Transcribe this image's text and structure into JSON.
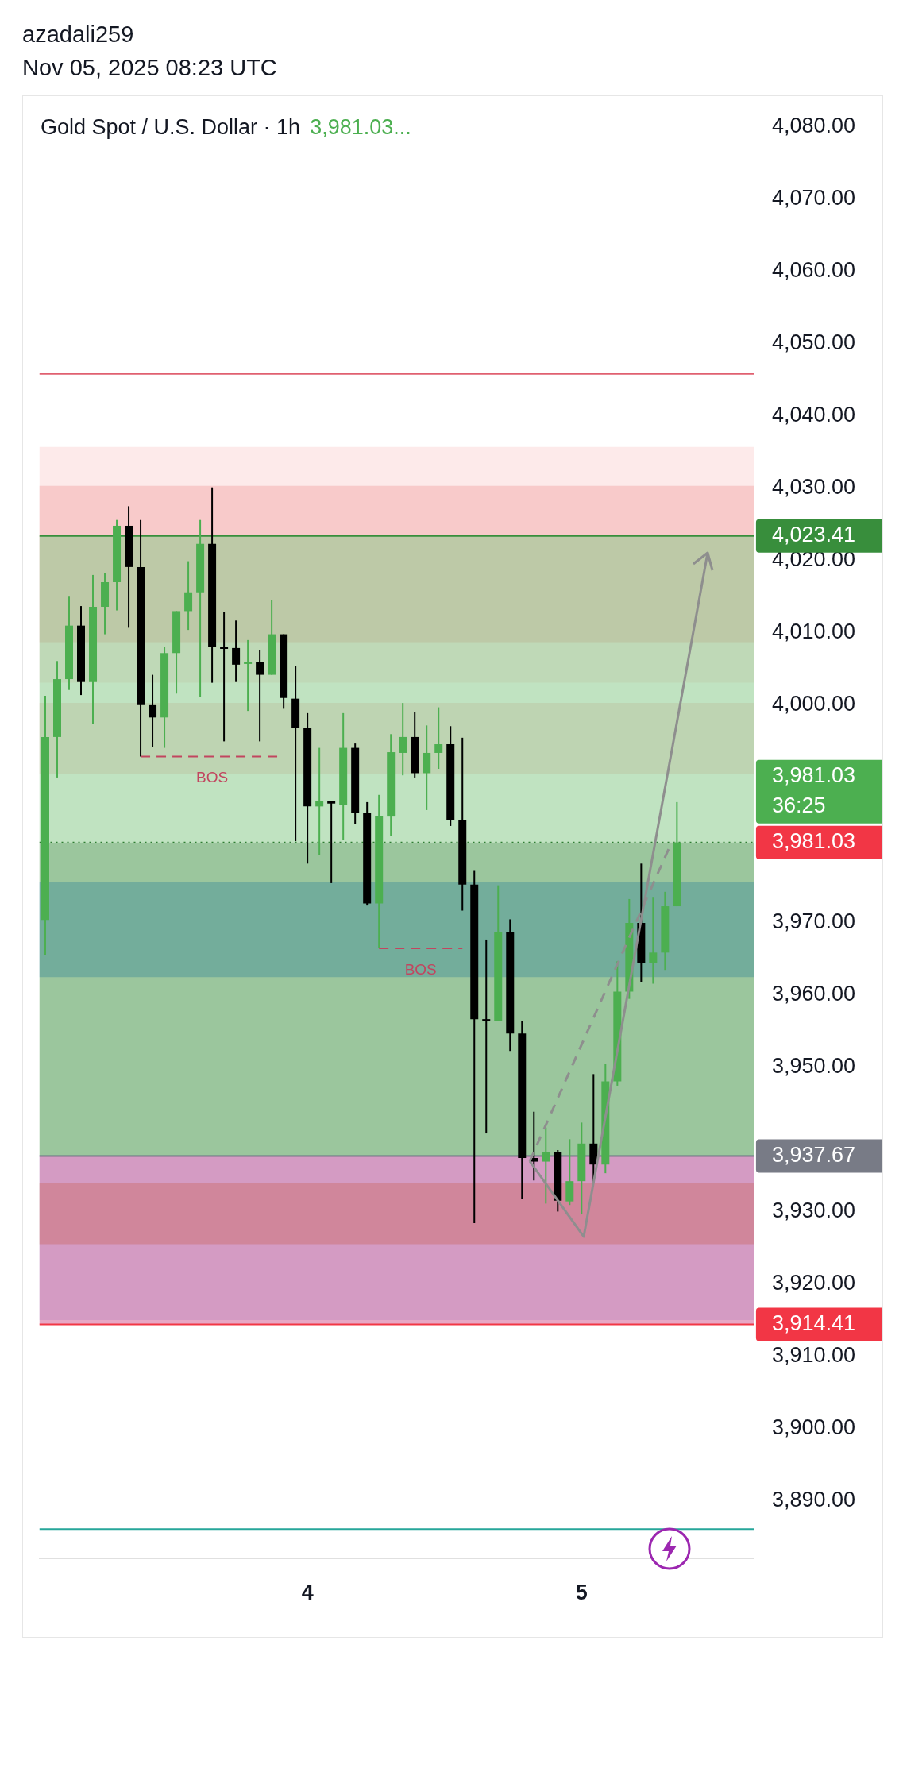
{
  "chart_data": {
    "type": "candlestick",
    "title": "Gold Spot / U.S. Dollar · 1h",
    "subtitle": "3,981.03...",
    "categories": [
      null,
      null,
      null,
      null,
      null,
      null,
      null,
      null,
      null,
      null,
      null,
      null,
      null,
      null,
      null,
      null,
      null,
      null,
      null,
      null,
      null,
      null,
      "4",
      null,
      null,
      null,
      null,
      null,
      null,
      null,
      null,
      null,
      null,
      null,
      null,
      null,
      null,
      null,
      null,
      null,
      null,
      null,
      null,
      null,
      null,
      "5",
      null,
      null,
      null,
      null,
      null,
      null,
      null,
      null,
      null,
      null,
      null,
      null,
      null,
      null
    ],
    "ohlc": [
      [
        3970.3,
        4001.3,
        3965.4,
        3995.6
      ],
      [
        3995.6,
        4006.1,
        3990.0,
        4003.6
      ],
      [
        4003.6,
        4015.0,
        4002.1,
        4011.0
      ],
      [
        4011.0,
        4013.7,
        4001.4,
        4003.2
      ],
      [
        4003.2,
        4018.0,
        3997.4,
        4013.6
      ],
      [
        4013.6,
        4018.3,
        4009.8,
        4017.0
      ],
      [
        4017.0,
        4025.6,
        4013.1,
        4024.8
      ],
      [
        4024.8,
        4027.5,
        4010.7,
        4019.1
      ],
      [
        4019.1,
        4025.6,
        3992.9,
        4000.0
      ],
      [
        4000.0,
        4004.2,
        3994.2,
        3998.3
      ],
      [
        3998.3,
        4008.1,
        3994.1,
        4007.2
      ],
      [
        4007.2,
        4013.0,
        4001.6,
        4013.0
      ],
      [
        4013.0,
        4019.9,
        4010.4,
        4015.6
      ],
      [
        4015.6,
        4025.6,
        4001.1,
        4022.3
      ],
      [
        4022.3,
        4030.1,
        4003.1,
        4008.0
      ],
      [
        4008.0,
        4012.9,
        3995.0,
        4007.8
      ],
      [
        4007.9,
        4011.7,
        4003.2,
        4005.6
      ],
      [
        4005.7,
        4009.0,
        3999.2,
        4006.0
      ],
      [
        4006.0,
        4007.6,
        3995.0,
        4004.2
      ],
      [
        4004.2,
        4014.5,
        4004.2,
        4009.8
      ],
      [
        4009.8,
        4009.8,
        3999.5,
        4001.0
      ],
      [
        4000.9,
        4005.4,
        3981.2,
        3996.8
      ],
      [
        3996.8,
        3998.9,
        3978.1,
        3986.0
      ],
      [
        3986.0,
        3994.1,
        3979.3,
        3986.8
      ],
      [
        3986.7,
        3986.7,
        3975.4,
        3986.4
      ],
      [
        3986.2,
        3998.9,
        3981.4,
        3994.1
      ],
      [
        3994.1,
        3994.7,
        3983.6,
        3985.1
      ],
      [
        3985.1,
        3986.6,
        3972.3,
        3972.6
      ],
      [
        3972.6,
        3987.6,
        3966.4,
        3984.6
      ],
      [
        3984.6,
        3996.0,
        3981.9,
        3993.5
      ],
      [
        3993.4,
        4000.3,
        3990.3,
        3995.6
      ],
      [
        3995.6,
        3999.0,
        3990.0,
        3990.6
      ],
      [
        3990.6,
        3997.2,
        3985.5,
        3993.4
      ],
      [
        3993.4,
        3999.7,
        3991.2,
        3994.6
      ],
      [
        3994.6,
        3997.1,
        3983.3,
        3984.1
      ],
      [
        3984.1,
        3995.5,
        3971.6,
        3975.2
      ],
      [
        3975.2,
        3977.1,
        3928.4,
        3956.6
      ],
      [
        3956.6,
        3967.6,
        3940.8,
        3956.3
      ],
      [
        3956.3,
        3975.1,
        3956.3,
        3968.6
      ],
      [
        3968.6,
        3970.4,
        3952.2,
        3954.6
      ],
      [
        3954.6,
        3956.3,
        3931.7,
        3937.4
      ],
      [
        3937.4,
        3943.8,
        3934.3,
        3936.9
      ],
      [
        3936.9,
        3941.6,
        3931.1,
        3938.2
      ],
      [
        3938.2,
        3938.5,
        3930.0,
        3931.5
      ],
      [
        3931.4,
        3940.0,
        3930.9,
        3934.2
      ],
      [
        3934.2,
        3942.3,
        3929.6,
        3939.4
      ],
      [
        3939.4,
        3949.0,
        3934.1,
        3936.5
      ],
      [
        3936.5,
        3950.4,
        3935.3,
        3948.0
      ],
      [
        3948.0,
        3964.6,
        3947.4,
        3960.4
      ],
      [
        3960.4,
        3973.2,
        3959.4,
        3969.9
      ],
      [
        3969.9,
        3978.1,
        3961.7,
        3964.3
      ],
      [
        3964.3,
        3973.5,
        3961.5,
        3965.8
      ],
      [
        3965.8,
        3974.2,
        3963.4,
        3972.2
      ],
      [
        3972.2,
        3986.6,
        3972.2,
        3981.03
      ],
      null,
      null,
      null,
      null,
      null,
      null
    ],
    "colors": [
      "#4caf50",
      "#4caf50",
      "#4caf50",
      "#000000",
      "#4caf50",
      "#4caf50",
      "#4caf50",
      "#000000",
      "#000000",
      "#000000",
      "#4caf50",
      "#4caf50",
      "#4caf50",
      "#4caf50",
      "#000000",
      "#000000",
      "#000000",
      "#4caf50",
      "#000000",
      "#4caf50",
      "#000000",
      "#000000",
      "#000000",
      "#4caf50",
      "#000000",
      "#4caf50",
      "#000000",
      "#000000",
      "#4caf50",
      "#4caf50",
      "#4caf50",
      "#000000",
      "#4caf50",
      "#4caf50",
      "#000000",
      "#000000",
      "#000000",
      "#000000",
      "#4caf50",
      "#000000",
      "#000000",
      "#000000",
      "#4caf50",
      "#000000",
      "#4caf50",
      "#4caf50",
      "#000000",
      "#4caf50",
      "#4caf50",
      "#4caf50",
      "#000000",
      "#4caf50",
      "#4caf50",
      "#4caf50",
      null,
      null,
      null,
      null,
      null,
      null
    ],
    "ylim": [
      3882,
      4080
    ],
    "yticks": [
      {
        "value": 3890,
        "label": "3,890.00"
      },
      {
        "value": 3900,
        "label": "3,900.00"
      },
      {
        "value": 3910,
        "label": "3,910.00"
      },
      {
        "value": 3920,
        "label": "3,920.00"
      },
      {
        "value": 3930,
        "label": "3,930.00"
      },
      {
        "value": 3950,
        "label": "3,950.00"
      },
      {
        "value": 3960,
        "label": "3,960.00"
      },
      {
        "value": 3970,
        "label": "3,970.00"
      },
      {
        "value": 4000,
        "label": "4,000.00"
      },
      {
        "value": 4010,
        "label": "4,010.00"
      },
      {
        "value": 4020,
        "label": "4,020.00"
      },
      {
        "value": 4030,
        "label": "4,030.00"
      },
      {
        "value": 4040,
        "label": "4,040.00"
      },
      {
        "value": 4050,
        "label": "4,050.00"
      },
      {
        "value": 4060,
        "label": "4,060.00"
      },
      {
        "value": 4070,
        "label": "4,070.00"
      },
      {
        "value": 4080,
        "label": "4,080.00"
      }
    ],
    "bands": [
      {
        "axis": "y",
        "from": 4003.1,
        "to": 4035.7,
        "color": "#fbd5d5"
      },
      {
        "axis": "y",
        "from": 4008.7,
        "to": 4030.3,
        "color": "#f3a9a9"
      },
      {
        "axis": "y",
        "from": 3990.5,
        "to": 4000.3,
        "color": "#f7c4c4"
      },
      {
        "axis": "y",
        "from": 3962.4,
        "to": 3975.6,
        "color": "#5d9cf5"
      },
      {
        "axis": "y",
        "from": 3915.0,
        "to": 3937.8,
        "color": "#b3cdf8"
      },
      {
        "axis": "y",
        "from": 3925.5,
        "to": 3933.9,
        "color": "#c8925a"
      },
      {
        "axis": "y",
        "from": 3981.03,
        "to": 4023.41,
        "color": "#81c784"
      },
      {
        "axis": "y",
        "from": 3937.67,
        "to": 3981.03,
        "color": "#388e3c"
      },
      {
        "axis": "y",
        "from": 3914.41,
        "to": 3937.67,
        "color": "#d0508c"
      }
    ],
    "ref_lines": [
      {
        "axis": "y",
        "value": 4045.8,
        "color": "#e06070",
        "line_style": "solid"
      },
      {
        "axis": "y",
        "value": 3886.1,
        "color": "#26a69a",
        "line_style": "solid"
      },
      {
        "axis": "y",
        "value": 4023.41,
        "label": "4,023.41",
        "color": "#388e3c",
        "line_style": "solid"
      },
      {
        "axis": "y",
        "value": 3981.03,
        "label": "3,981.03",
        "color": "#2e7d32",
        "line_style": "dotted"
      },
      {
        "axis": "y",
        "value": 3937.67,
        "label": "3,937.67",
        "color": "#787b86",
        "line_style": "solid"
      },
      {
        "axis": "y",
        "value": 3914.41,
        "label": "3,914.41",
        "color": "#f23645",
        "line_style": "solid"
      },
      {
        "axis": "y",
        "value": 3992.9,
        "label": "BOS",
        "color": "#c2455f",
        "line_style": "dashed"
      },
      {
        "axis": "y",
        "value": 3966.4,
        "label": "BOS",
        "color": "#c2455f",
        "line_style": "dashed"
      }
    ],
    "annotations": [
      "azadali259",
      "Nov 05, 2025 08:23 UTC",
      "3,981.03\n36:25"
    ],
    "grid": false
  }
}
